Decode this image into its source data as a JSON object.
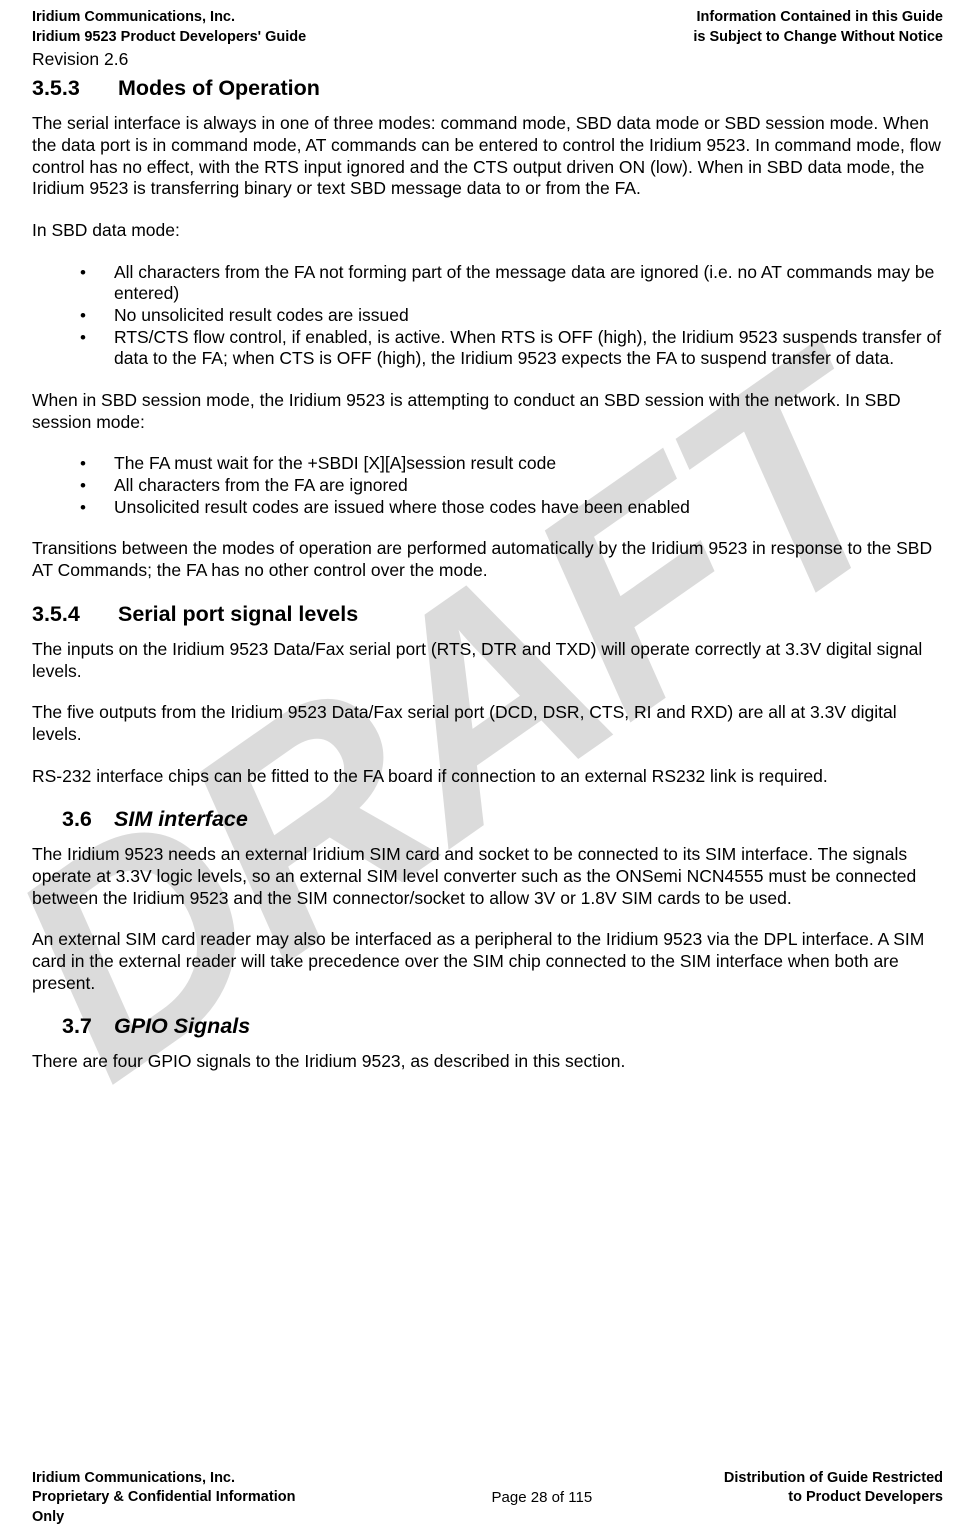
{
  "header": {
    "left1": "Iridium Communications, Inc.",
    "right1": "Information Contained in this Guide",
    "left2": "Iridium 9523 Product Developers' Guide",
    "right2": "is Subject to Change Without Notice",
    "revision": "Revision 2.6"
  },
  "watermark": "DRAFT",
  "s353": {
    "num": "3.5.3",
    "title": "Modes of Operation",
    "p1": "The serial interface is always in one of three modes: command mode, SBD data mode or SBD session mode. When the data port is in command mode, AT commands can be entered to control the Iridium 9523.  In command mode, flow control has no effect, with the RTS input ignored and the CTS output driven ON (low). When in SBD data mode, the Iridium 9523 is transferring binary or text SBD message data to or from the FA.",
    "p2": "In SBD data mode:",
    "b1a": " All characters from the FA not forming part of the message data are ignored (i.e. no AT commands may be entered)",
    "b1b": " No unsolicited result codes are issued",
    "b1c": " RTS/CTS flow control, if enabled, is active.  When RTS is OFF (high), the Iridium 9523 suspends transfer of data to the FA; when CTS is OFF (high), the Iridium 9523 expects the FA to suspend transfer of data.",
    "p3": "When in SBD session mode, the Iridium 9523 is attempting to conduct an SBD session with the network. In SBD session mode:",
    "b2a": "The FA must wait for the +SBDI [X][A]session result code",
    "b2b": "All characters from the FA are ignored",
    "b2c": "  Unsolicited result codes are issued where those codes have been enabled",
    "p4": "Transitions between the modes of operation are performed automatically by the Iridium 9523 in response to the SBD AT Commands; the FA has no other control over the mode."
  },
  "s354": {
    "num": "3.5.4",
    "title": "Serial port signal levels",
    "p1": "The inputs on the Iridium 9523 Data/Fax serial port (RTS, DTR and TXD) will operate correctly at 3.3V digital signal levels.",
    "p2": "The five outputs from the Iridium 9523 Data/Fax serial port (DCD, DSR, CTS, RI and RXD) are all at 3.3V digital levels.",
    "p3": "RS-232 interface chips can be fitted to the FA board if connection to an external RS232 link is required."
  },
  "s36": {
    "num": "3.6",
    "title": "SIM interface",
    "p1": "The Iridium 9523 needs an external Iridium SIM card and socket to be connected to its SIM interface. The signals operate at 3.3V logic levels, so an external SIM level converter such as the ONSemi NCN4555 must be connected between the Iridium 9523 and the SIM connector/socket to allow 3V or 1.8V SIM cards to be used.",
    "p2": "An external SIM card reader may also be interfaced as a peripheral to the Iridium 9523 via the DPL interface. A SIM card in the external reader will take precedence over the SIM chip connected to the SIM interface when both are present."
  },
  "s37": {
    "num": "3.7",
    "title": "GPIO Signals",
    "p1": "There are four GPIO signals to the Iridium 9523, as described in this section."
  },
  "footer": {
    "l1": "Iridium Communications, Inc.",
    "r1": "Distribution of Guide Restricted",
    "l2": "Proprietary & Confidential Information",
    "c2": "Page 28 of 115",
    "r2": "to Product Developers",
    "l3": "Only"
  }
}
